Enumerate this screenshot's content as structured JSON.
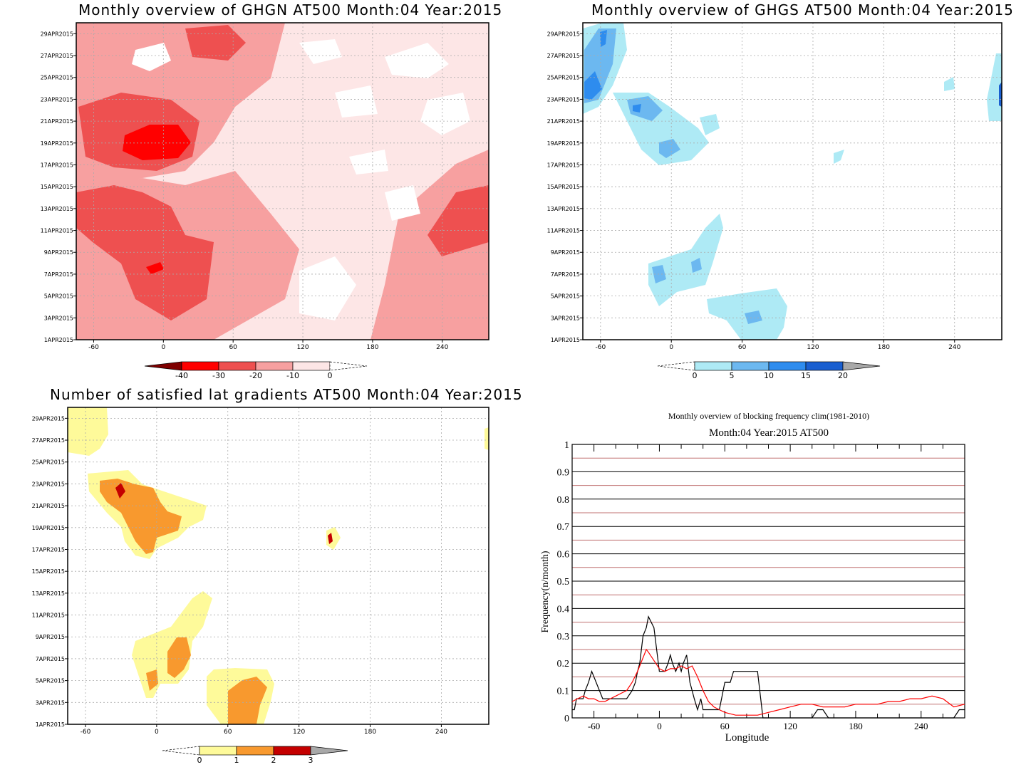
{
  "chart_data": [
    {
      "type": "heatmap",
      "title": "Monthly overview of GHGN AT500 Month:04 Year:2015",
      "xlim": [
        -75,
        280
      ],
      "x_ticks": [
        "-60",
        "0",
        "60",
        "120",
        "180",
        "240"
      ],
      "x_tick_values": [
        -60,
        0,
        60,
        120,
        180,
        240
      ],
      "y_ticks": [
        "1APR2015",
        "3APR2015",
        "5APR2015",
        "7APR2015",
        "9APR2015",
        "11APR2015",
        "13APR2015",
        "15APR2015",
        "17APR2015",
        "19APR2015",
        "21APR2015",
        "23APR2015",
        "25APR2015",
        "27APR2015",
        "29APR2015"
      ],
      "colorbar": {
        "labels": [
          "-40",
          "-30",
          "-20",
          "-10",
          "0"
        ],
        "colors": [
          "#7f0000",
          "#ff0000",
          "#ee5050",
          "#f7a0a0",
          "#fde6e6",
          "#ffffff"
        ],
        "extend": "both"
      },
      "grid": true
    },
    {
      "type": "heatmap",
      "title": "Monthly overview of GHGS AT500 Month:04 Year:2015",
      "xlim": [
        -75,
        280
      ],
      "x_ticks": [
        "-60",
        "0",
        "60",
        "120",
        "180",
        "240"
      ],
      "x_tick_values": [
        -60,
        0,
        60,
        120,
        180,
        240
      ],
      "y_ticks": [
        "1APR2015",
        "3APR2015",
        "5APR2015",
        "7APR2015",
        "9APR2015",
        "11APR2015",
        "13APR2015",
        "15APR2015",
        "17APR2015",
        "19APR2015",
        "21APR2015",
        "23APR2015",
        "25APR2015",
        "27APR2015",
        "29APR2015"
      ],
      "colorbar": {
        "labels": [
          "0",
          "5",
          "10",
          "15",
          "20"
        ],
        "colors": [
          "#ffffff",
          "#aeeaf5",
          "#6cb8f0",
          "#2e8cee",
          "#1a5fd0",
          "#a8a8a8"
        ],
        "extend": "both"
      },
      "grid": true
    },
    {
      "type": "heatmap",
      "title": "Number of satisfied lat gradients AT500 Month:04 Year:2015",
      "xlim": [
        -75,
        280
      ],
      "x_ticks": [
        "-60",
        "0",
        "60",
        "120",
        "180",
        "240"
      ],
      "x_tick_values": [
        -60,
        0,
        60,
        120,
        180,
        240
      ],
      "y_ticks": [
        "1APR2015",
        "3APR2015",
        "5APR2015",
        "7APR2015",
        "9APR2015",
        "11APR2015",
        "13APR2015",
        "15APR2015",
        "17APR2015",
        "19APR2015",
        "21APR2015",
        "23APR2015",
        "25APR2015",
        "27APR2015",
        "29APR2015"
      ],
      "colorbar": {
        "labels": [
          "0",
          "1",
          "2",
          "3"
        ],
        "colors": [
          "#ffffff",
          "#fefa9a",
          "#f8992e",
          "#c40000",
          "#a8a8a8"
        ],
        "extend": "both"
      },
      "grid": true
    },
    {
      "type": "line",
      "title": "Monthly overview of blocking frequency clim(1981-2010)",
      "subtitle": "Month:04 Year:2015  AT500",
      "xlabel": "Longitude",
      "ylabel": "Frequency(n/month)",
      "xlim": [
        -80,
        280
      ],
      "ylim": [
        0,
        1
      ],
      "x_ticks": [
        "-60",
        "0",
        "60",
        "120",
        "180",
        "240"
      ],
      "x_tick_values": [
        -60,
        0,
        60,
        120,
        180,
        240
      ],
      "y_ticks": [
        "0",
        "0.1",
        "0.2",
        "0.3",
        "0.4",
        "0.5",
        "0.6",
        "0.7",
        "0.8",
        "0.9",
        "1"
      ],
      "y_tick_values": [
        0,
        0.1,
        0.2,
        0.3,
        0.4,
        0.5,
        0.6,
        0.7,
        0.8,
        0.9,
        1
      ],
      "series": [
        {
          "color": "#000000",
          "x": [
            -80,
            -78,
            -76,
            -72,
            -70,
            -68,
            -65,
            -62,
            -58,
            -55,
            -52,
            -50,
            -45,
            -40,
            -35,
            -30,
            -25,
            -22,
            -20,
            -18,
            -15,
            -12,
            -10,
            -5,
            0,
            5,
            8,
            10,
            12,
            15,
            18,
            20,
            22,
            25,
            28,
            30,
            32,
            35,
            38,
            40,
            45,
            50,
            55,
            60,
            62,
            65,
            68,
            70,
            72,
            75,
            80,
            85,
            90,
            95,
            100,
            105,
            110,
            115,
            120,
            125,
            130,
            135,
            140,
            145,
            150,
            155,
            160,
            165,
            170,
            175,
            180,
            190,
            200,
            210,
            220,
            230,
            240,
            250,
            260,
            270,
            275,
            280
          ],
          "y": [
            0.03,
            0.03,
            0.07,
            0.07,
            0.07,
            0.1,
            0.13,
            0.17,
            0.13,
            0.1,
            0.07,
            0.07,
            0.07,
            0.07,
            0.07,
            0.07,
            0.1,
            0.13,
            0.17,
            0.2,
            0.3,
            0.33,
            0.37,
            0.33,
            0.17,
            0.17,
            0.2,
            0.23,
            0.2,
            0.17,
            0.2,
            0.17,
            0.2,
            0.23,
            0.13,
            0.1,
            0.07,
            0.03,
            0.07,
            0.03,
            0.03,
            0.03,
            0.03,
            0.13,
            0.13,
            0.13,
            0.17,
            0.17,
            0.17,
            0.17,
            0.17,
            0.17,
            0.17,
            0.0,
            0.0,
            0.0,
            0.0,
            0.0,
            0.0,
            0.0,
            0.0,
            0.0,
            0.0,
            0.03,
            0.03,
            0.0,
            0.0,
            0.0,
            0.0,
            0.0,
            0.0,
            0.0,
            0.0,
            0.0,
            0.0,
            0.0,
            0.0,
            0.0,
            0.0,
            0.0,
            0.03,
            0.03
          ]
        },
        {
          "color": "#ff0000",
          "x": [
            -80,
            -75,
            -70,
            -65,
            -60,
            -55,
            -50,
            -45,
            -40,
            -35,
            -30,
            -25,
            -20,
            -15,
            -12,
            -10,
            -5,
            0,
            5,
            10,
            15,
            20,
            25,
            30,
            35,
            40,
            45,
            50,
            55,
            60,
            70,
            80,
            90,
            100,
            110,
            120,
            130,
            140,
            150,
            160,
            170,
            180,
            190,
            200,
            210,
            220,
            230,
            240,
            250,
            260,
            270,
            280
          ],
          "y": [
            0.06,
            0.07,
            0.08,
            0.07,
            0.07,
            0.06,
            0.06,
            0.07,
            0.08,
            0.09,
            0.1,
            0.13,
            0.17,
            0.22,
            0.25,
            0.24,
            0.21,
            0.18,
            0.17,
            0.18,
            0.18,
            0.19,
            0.18,
            0.19,
            0.15,
            0.1,
            0.06,
            0.04,
            0.03,
            0.02,
            0.01,
            0.01,
            0.01,
            0.02,
            0.03,
            0.04,
            0.05,
            0.05,
            0.04,
            0.04,
            0.04,
            0.05,
            0.05,
            0.05,
            0.06,
            0.06,
            0.07,
            0.07,
            0.08,
            0.07,
            0.04,
            0.05
          ]
        }
      ],
      "grid": true
    }
  ]
}
